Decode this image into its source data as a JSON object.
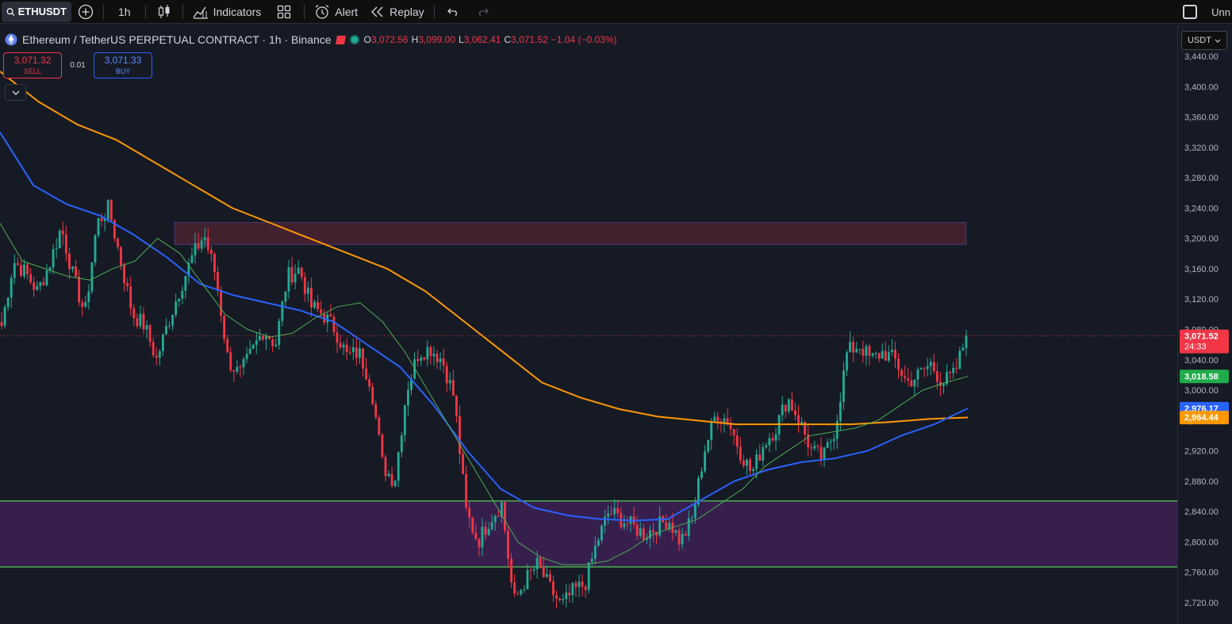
{
  "toolbar": {
    "symbol": "ETHUSDT",
    "timeframe": "1h",
    "indicators_label": "Indicators",
    "alert_label": "Alert",
    "replay_label": "Replay",
    "right_label": "Unn"
  },
  "legend": {
    "title": "Ethereum / TetherUS PERPETUAL CONTRACT · 1h · Binance",
    "open_key": "O",
    "open": "3,072.56",
    "high_key": "H",
    "high": "3,099.00",
    "low_key": "L",
    "low": "3,062.41",
    "close_key": "C",
    "close": "3,071.52",
    "change": "−1.04 (−0.03%)"
  },
  "trade": {
    "sell_price": "3,071.32",
    "sell_label": "SELL",
    "spread": "0.01",
    "buy_price": "3,071.33",
    "buy_label": "BUY"
  },
  "currency": "USDT",
  "colors": {
    "bg": "#161a25",
    "up": "#22ab94",
    "down": "#f23645",
    "ma_fast": "#4caf50",
    "ma_mid": "#2962ff",
    "ma_slow": "#ff9800",
    "zone_top": "#4a2331",
    "zone_bottom": "#3a2052"
  },
  "price_labels": {
    "last": "3,071.52",
    "countdown": "24:33",
    "ma_fast": "3,018.58",
    "ma_mid": "2,976.17",
    "ma_slow": "2,964.44"
  },
  "chart_data": {
    "type": "candlestick",
    "y_ticks": [
      "3,440.00",
      "3,400.00",
      "3,360.00",
      "3,320.00",
      "3,280.00",
      "3,240.00",
      "3,200.00",
      "3,160.00",
      "3,120.00",
      "3,080.00",
      "3,040.00",
      "3,000.00",
      "2,960.00",
      "2,920.00",
      "2,880.00",
      "2,840.00",
      "2,800.00",
      "2,760.00",
      "2,720.00"
    ],
    "y_tick_values": [
      3440,
      3400,
      3360,
      3320,
      3280,
      3240,
      3200,
      3160,
      3120,
      3080,
      3040,
      3000,
      2960,
      2920,
      2880,
      2840,
      2800,
      2760,
      2720
    ],
    "ylim": [
      2705,
      3450
    ],
    "last_price": 3071.52,
    "zones": [
      {
        "from": 3192,
        "to": 3221
      },
      {
        "from": 2767,
        "to": 2854
      }
    ],
    "close_path": [
      3085,
      3170,
      3155,
      3130,
      3165,
      3215,
      3150,
      3100,
      3220,
      3240,
      3170,
      3100,
      3085,
      3040,
      3090,
      3135,
      3175,
      3205,
      3150,
      3040,
      3020,
      3050,
      3080,
      3060,
      3150,
      3160,
      3110,
      3100,
      3080,
      3045,
      3050,
      3010,
      2900,
      2880,
      3000,
      3050,
      3055,
      3040,
      2990,
      2840,
      2800,
      2830,
      2850,
      2720,
      2750,
      2770,
      2740,
      2715,
      2735,
      2745,
      2800,
      2840,
      2830,
      2820,
      2810,
      2820,
      2830,
      2800,
      2830,
      2920,
      2970,
      2960,
      2920,
      2890,
      2930,
      2950,
      2990,
      2960,
      2920,
      2910,
      2950,
      3050,
      3060,
      3040,
      3050,
      3040,
      3010,
      3020,
      3035,
      3010,
      3020,
      3071
    ],
    "ma_fast": [
      3220,
      3170,
      3160,
      3150,
      3145,
      3160,
      3170,
      3200,
      3180,
      3140,
      3100,
      3080,
      3070,
      3075,
      3095,
      3110,
      3115,
      3090,
      3050,
      3000,
      2950,
      2900,
      2850,
      2800,
      2780,
      2770,
      2770,
      2775,
      2790,
      2810,
      2820,
      2830,
      2850,
      2870,
      2900,
      2920,
      2940,
      2945,
      2950,
      2960,
      2980,
      3000,
      3010,
      3018
    ],
    "ma_mid": [
      3340,
      3270,
      3245,
      3230,
      3205,
      3175,
      3140,
      3125,
      3115,
      3105,
      3090,
      3060,
      3030,
      2980,
      2920,
      2870,
      2845,
      2835,
      2830,
      2828,
      2830,
      2855,
      2880,
      2895,
      2905,
      2910,
      2920,
      2940,
      2955,
      2976
    ],
    "ma_slow": [
      3420,
      3380,
      3350,
      3330,
      3300,
      3270,
      3240,
      3220,
      3200,
      3180,
      3160,
      3130,
      3090,
      3050,
      3010,
      2990,
      2975,
      2965,
      2960,
      2955,
      2955,
      2955,
      2955,
      2958,
      2962,
      2964
    ]
  }
}
